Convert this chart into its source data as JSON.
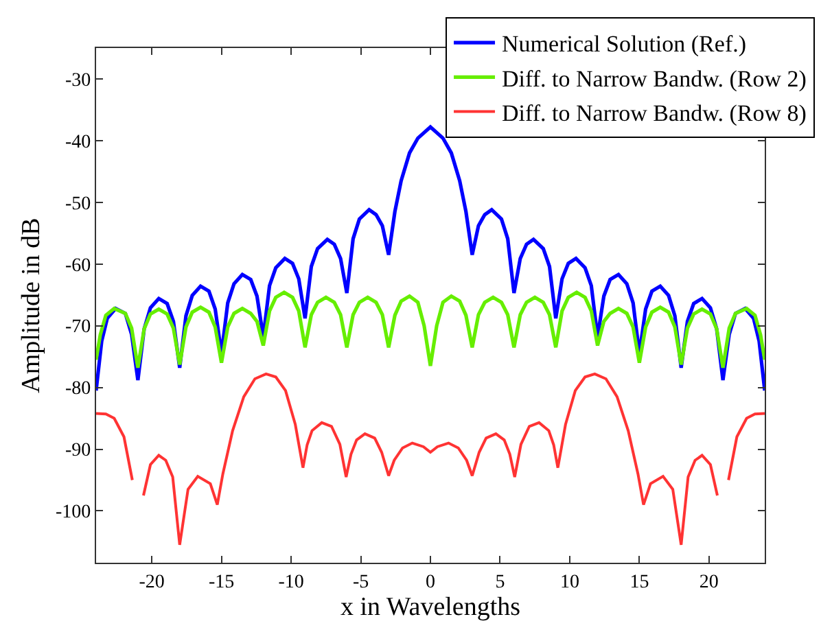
{
  "chart_data": {
    "type": "line",
    "xlabel": "x in Wavelengths",
    "ylabel": "Amplitude in dB",
    "xlim": [
      -24,
      24
    ],
    "ylim": [
      -108.4,
      -25
    ],
    "xticks": [
      -20,
      -15,
      -10,
      -5,
      0,
      5,
      10,
      15,
      20
    ],
    "yticks": [
      -30,
      -40,
      -50,
      -60,
      -70,
      -80,
      -90,
      -100
    ],
    "legend": "top right",
    "marker": "none",
    "line_style": "solid",
    "series": [
      {
        "name": "Numerical Solution (Ref.)",
        "color": "#0000ff",
        "x": [
          -24,
          -23.6,
          -23.2,
          -22.6,
          -21.9,
          -21.45,
          -21,
          -20.55,
          -20.1,
          -19.5,
          -18.9,
          -18.45,
          -18,
          -17.55,
          -17.1,
          -16.5,
          -15.9,
          -15.45,
          -15,
          -14.55,
          -14.1,
          -13.5,
          -12.9,
          -12.45,
          -12,
          -11.55,
          -11.1,
          -10.45,
          -9.9,
          -9.45,
          -9,
          -8.55,
          -8.1,
          -7.4,
          -6.9,
          -6.45,
          -6,
          -5.55,
          -5.1,
          -4.4,
          -3.9,
          -3.45,
          -3,
          -2.55,
          -2.1,
          -1.5,
          -0.9,
          0,
          0.9,
          1.5,
          2.1,
          2.55,
          3,
          3.45,
          3.9,
          4.4,
          5.1,
          5.55,
          6,
          6.45,
          6.9,
          7.4,
          8.1,
          8.55,
          9,
          9.45,
          9.9,
          10.45,
          11.1,
          11.55,
          12,
          12.45,
          12.9,
          13.5,
          14.1,
          14.55,
          15,
          15.45,
          15.9,
          16.5,
          17.1,
          17.55,
          18,
          18.45,
          18.9,
          19.5,
          20.1,
          20.55,
          21,
          21.45,
          21.9,
          22.6,
          23.2,
          23.6,
          24
        ],
        "values": [
          -80.5,
          -72.5,
          -68.8,
          -67.2,
          -68.0,
          -71.4,
          -78.8,
          -70.5,
          -67.1,
          -65.6,
          -66.4,
          -69.3,
          -76.8,
          -68.4,
          -65.1,
          -63.6,
          -64.4,
          -67.3,
          -74.5,
          -66.3,
          -63.2,
          -61.7,
          -62.5,
          -65.2,
          -71.8,
          -63.5,
          -60.6,
          -59.1,
          -59.9,
          -62.4,
          -68.8,
          -60.4,
          -57.5,
          -56.0,
          -56.8,
          -59.1,
          -64.7,
          -55.9,
          -52.7,
          -51.2,
          -52.0,
          -53.8,
          -58.5,
          -51.5,
          -46.5,
          -42.0,
          -39.6,
          -37.8,
          -39.6,
          -42.0,
          -46.5,
          -51.5,
          -58.5,
          -53.8,
          -52.0,
          -51.2,
          -52.7,
          -55.9,
          -64.7,
          -59.1,
          -56.8,
          -56.0,
          -57.5,
          -60.4,
          -68.8,
          -62.4,
          -59.9,
          -59.1,
          -60.6,
          -63.5,
          -71.8,
          -65.2,
          -62.5,
          -61.7,
          -63.2,
          -66.3,
          -74.5,
          -67.3,
          -64.4,
          -63.6,
          -65.1,
          -68.4,
          -76.8,
          -69.3,
          -66.4,
          -65.6,
          -67.1,
          -70.5,
          -78.8,
          -71.4,
          -68.0,
          -67.2,
          -68.8,
          -72.5,
          -80.5
        ]
      },
      {
        "name": "Diff. to Narrow Bandw. (Row 2)",
        "color": "#66ee00",
        "x": [
          -24,
          -23.7,
          -23.3,
          -22.7,
          -21.9,
          -21.45,
          -21,
          -20.55,
          -20.1,
          -19.5,
          -18.9,
          -18.45,
          -18,
          -17.55,
          -17.1,
          -16.5,
          -15.9,
          -15.45,
          -15,
          -14.55,
          -14.1,
          -13.5,
          -12.9,
          -12.45,
          -12,
          -11.55,
          -11.1,
          -10.5,
          -9.9,
          -9.45,
          -9,
          -8.55,
          -8.1,
          -7.5,
          -6.9,
          -6.45,
          -6,
          -5.55,
          -5.1,
          -4.5,
          -3.9,
          -3.45,
          -3,
          -2.55,
          -2.1,
          -1.5,
          -0.9,
          -0.45,
          0,
          0.45,
          0.9,
          1.5,
          2.1,
          2.55,
          3,
          3.45,
          3.9,
          4.5,
          5.1,
          5.55,
          6,
          6.45,
          6.9,
          7.5,
          8.1,
          8.55,
          9,
          9.45,
          9.9,
          10.5,
          11.1,
          11.55,
          12,
          12.45,
          12.9,
          13.5,
          14.1,
          14.55,
          15,
          15.45,
          15.9,
          16.5,
          17.1,
          17.55,
          18,
          18.45,
          18.9,
          19.5,
          20.1,
          20.55,
          21,
          21.45,
          21.9,
          22.7,
          23.3,
          23.7,
          24
        ],
        "values": [
          -75.5,
          -71.5,
          -68.3,
          -67.2,
          -68.0,
          -70.4,
          -76.8,
          -70.5,
          -68.1,
          -67.3,
          -68.1,
          -70.4,
          -76.3,
          -70.2,
          -67.8,
          -67.0,
          -67.8,
          -70.2,
          -76.0,
          -70.2,
          -68.0,
          -67.2,
          -68.0,
          -69.3,
          -73.2,
          -67.6,
          -65.4,
          -64.6,
          -65.4,
          -67.6,
          -73.5,
          -68.2,
          -66.2,
          -65.4,
          -66.2,
          -68.2,
          -73.5,
          -68.2,
          -66.2,
          -65.4,
          -66.2,
          -68.2,
          -73.5,
          -68.3,
          -66.0,
          -65.2,
          -66.2,
          -70.0,
          -76.5,
          -70.0,
          -66.2,
          -65.2,
          -66.0,
          -68.3,
          -73.5,
          -68.2,
          -66.2,
          -65.4,
          -66.2,
          -68.2,
          -73.5,
          -68.2,
          -66.2,
          -65.4,
          -66.2,
          -68.2,
          -73.5,
          -67.6,
          -65.4,
          -64.6,
          -65.4,
          -67.6,
          -73.2,
          -69.3,
          -68.0,
          -67.2,
          -68.0,
          -70.2,
          -76.0,
          -70.2,
          -67.8,
          -67.0,
          -67.8,
          -70.2,
          -76.3,
          -70.4,
          -68.1,
          -67.3,
          -68.1,
          -70.5,
          -76.8,
          -70.4,
          -68.0,
          -67.2,
          -68.3,
          -71.5,
          -75.5
        ]
      },
      {
        "name": "Diff. to Narrow Bandw. (Row 8)",
        "color": "#ff3333",
        "x": [
          -24,
          -23.3,
          -22.7,
          -22.0,
          -21.4,
          -21.0,
          -20.6,
          -20.1,
          -19.5,
          -19.0,
          -18.5,
          -18.0,
          -17.4,
          -16.7,
          -15.8,
          -15.3,
          -14.9,
          -14.2,
          -13.4,
          -12.6,
          -11.8,
          -11.1,
          -10.4,
          -9.7,
          -9.15,
          -8.85,
          -8.5,
          -7.8,
          -7.1,
          -6.5,
          -6.05,
          -5.7,
          -5.3,
          -4.7,
          -4.0,
          -3.5,
          -3,
          -2.6,
          -2.0,
          -1.3,
          -0.5,
          0,
          0.5,
          1.3,
          2.0,
          2.6,
          3,
          3.5,
          4.0,
          4.7,
          5.3,
          5.7,
          6.05,
          6.5,
          7.1,
          7.8,
          8.5,
          8.85,
          9.15,
          9.7,
          10.4,
          11.1,
          11.8,
          12.6,
          13.4,
          14.2,
          14.9,
          15.3,
          15.8,
          16.7,
          17.4,
          18.0,
          18.5,
          19.0,
          19.5,
          20.1,
          20.6,
          21.0,
          21.4,
          22.0,
          22.7,
          23.3,
          24
        ],
        "values": [
          -84.2,
          -84.3,
          -85.0,
          -88.0,
          -95.0,
          null,
          -97.5,
          -92.5,
          -91.0,
          -91.8,
          -94.5,
          -105.5,
          -96.5,
          -94.4,
          -95.6,
          -99.0,
          -94.0,
          -87.0,
          -81.5,
          -78.6,
          -77.8,
          -78.3,
          -80.5,
          -86.0,
          -93.0,
          -89.3,
          -87.0,
          -85.7,
          -86.3,
          -89.2,
          -94.5,
          -90.8,
          -88.5,
          -87.5,
          -88.2,
          -90.5,
          -94.3,
          -91.8,
          -89.8,
          -89.0,
          -89.6,
          -90.5,
          -89.6,
          -89.0,
          -89.8,
          -91.8,
          -94.3,
          -90.5,
          -88.2,
          -87.5,
          -88.5,
          -90.8,
          -94.5,
          -89.2,
          -86.3,
          -85.7,
          -87.0,
          -89.3,
          -93.0,
          -86.0,
          -80.5,
          -78.3,
          -77.8,
          -78.6,
          -81.5,
          -87.0,
          -94.0,
          -99.0,
          -95.6,
          -94.4,
          -96.5,
          -105.5,
          -94.5,
          -91.8,
          -91.0,
          -92.5,
          -97.5,
          null,
          -95.0,
          -88.0,
          -85.0,
          -84.3,
          -84.2
        ]
      }
    ]
  }
}
